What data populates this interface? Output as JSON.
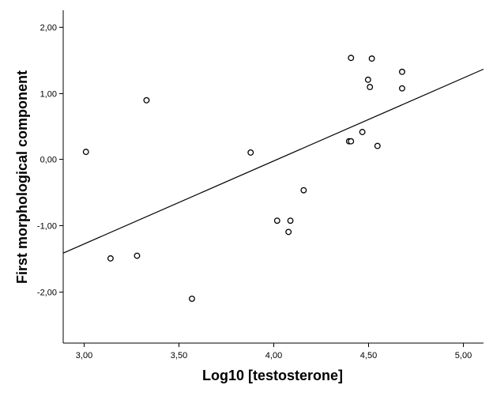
{
  "chart_data": {
    "type": "scatter",
    "title": "",
    "xlabel": "Log10 [testosterone]",
    "ylabel": "First morphological component",
    "xlim": [
      2.89,
      5.11
    ],
    "ylim": [
      -2.78,
      2.25
    ],
    "x_ticks": [
      3.0,
      3.5,
      4.0,
      4.5,
      5.0
    ],
    "x_tick_labels": [
      "3,00",
      "3,50",
      "4,00",
      "4,50",
      "5,00"
    ],
    "y_ticks": [
      2.0,
      1.0,
      0.0,
      -1.0,
      -2.0
    ],
    "y_tick_labels": [
      "2,00",
      "1,00",
      "0,00",
      "-1,00",
      "-2,00"
    ],
    "grid": false,
    "legend": "none",
    "series": [
      {
        "points": [
          {
            "x": 3.01,
            "y": 0.11
          },
          {
            "x": 3.14,
            "y": -1.5
          },
          {
            "x": 3.28,
            "y": -1.46
          },
          {
            "x": 3.33,
            "y": 0.89
          },
          {
            "x": 3.57,
            "y": -2.11
          },
          {
            "x": 3.88,
            "y": 0.1
          },
          {
            "x": 4.02,
            "y": -0.93
          },
          {
            "x": 4.08,
            "y": -1.1
          },
          {
            "x": 4.09,
            "y": -0.93
          },
          {
            "x": 4.16,
            "y": -0.47
          },
          {
            "x": 4.4,
            "y": 0.27
          },
          {
            "x": 4.41,
            "y": 0.27
          },
          {
            "x": 4.41,
            "y": 1.53
          },
          {
            "x": 4.47,
            "y": 0.41
          },
          {
            "x": 4.5,
            "y": 1.2
          },
          {
            "x": 4.51,
            "y": 1.09
          },
          {
            "x": 4.52,
            "y": 1.52
          },
          {
            "x": 4.55,
            "y": 0.2
          },
          {
            "x": 4.68,
            "y": 1.32
          },
          {
            "x": 4.68,
            "y": 1.07
          }
        ]
      }
    ],
    "fit_line": {
      "x": [
        2.89,
        5.11
      ],
      "y": [
        -1.42,
        1.36
      ]
    },
    "colors": {
      "marker_stroke": "#000000",
      "marker_fill": "#ffffff",
      "line": "#000000",
      "axis": "#000000"
    }
  }
}
